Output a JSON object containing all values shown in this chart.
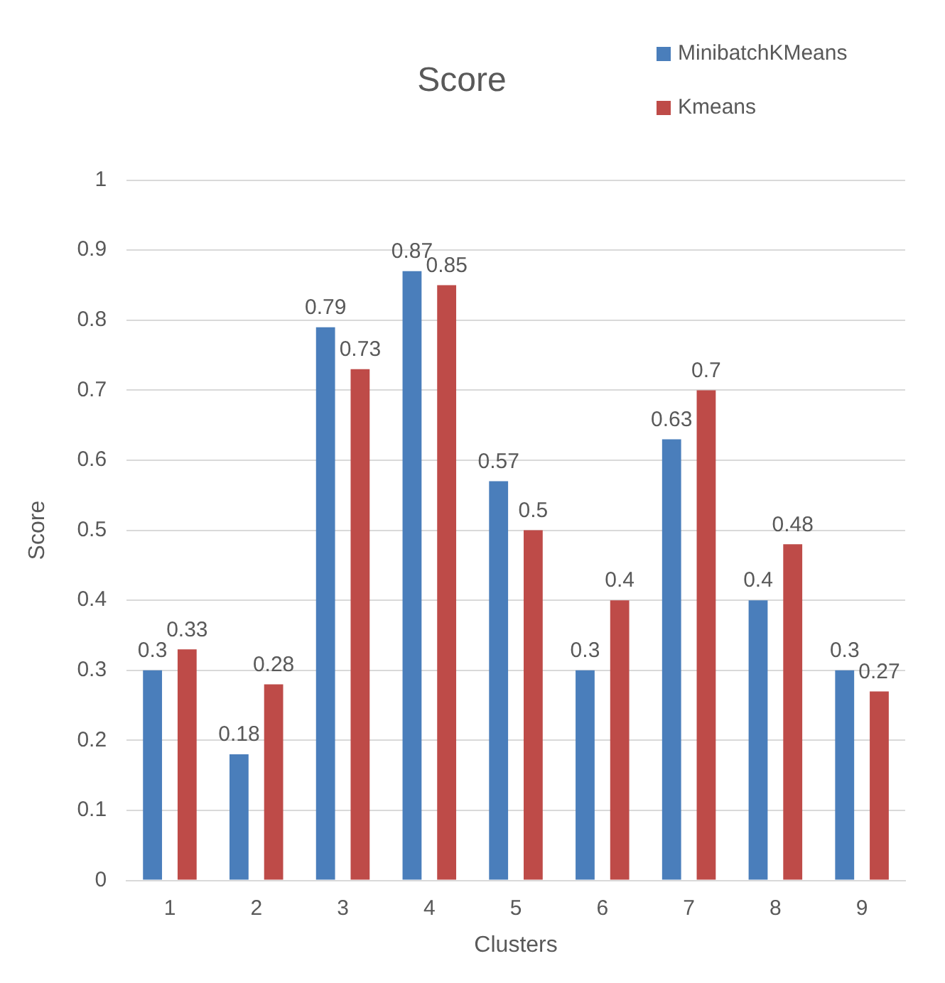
{
  "chart_data": {
    "type": "bar",
    "title": "Score",
    "xlabel": "Clusters",
    "ylabel": "Score",
    "categories": [
      "1",
      "2",
      "3",
      "4",
      "5",
      "6",
      "7",
      "8",
      "9"
    ],
    "series": [
      {
        "name": "MinibatchKMeans",
        "color": "#4a7ebb",
        "values": [
          0.3,
          0.18,
          0.79,
          0.87,
          0.57,
          0.3,
          0.63,
          0.4,
          0.3
        ]
      },
      {
        "name": "Kmeans",
        "color": "#be4b48",
        "values": [
          0.33,
          0.28,
          0.73,
          0.85,
          0.5,
          0.4,
          0.7,
          0.48,
          0.27
        ]
      }
    ],
    "ylim": [
      0,
      1
    ],
    "yticks": [
      0,
      0.1,
      0.2,
      0.3,
      0.4,
      0.5,
      0.6,
      0.7,
      0.8,
      0.9,
      1
    ],
    "grid": "y",
    "legend": "top right",
    "data_labels": true
  }
}
